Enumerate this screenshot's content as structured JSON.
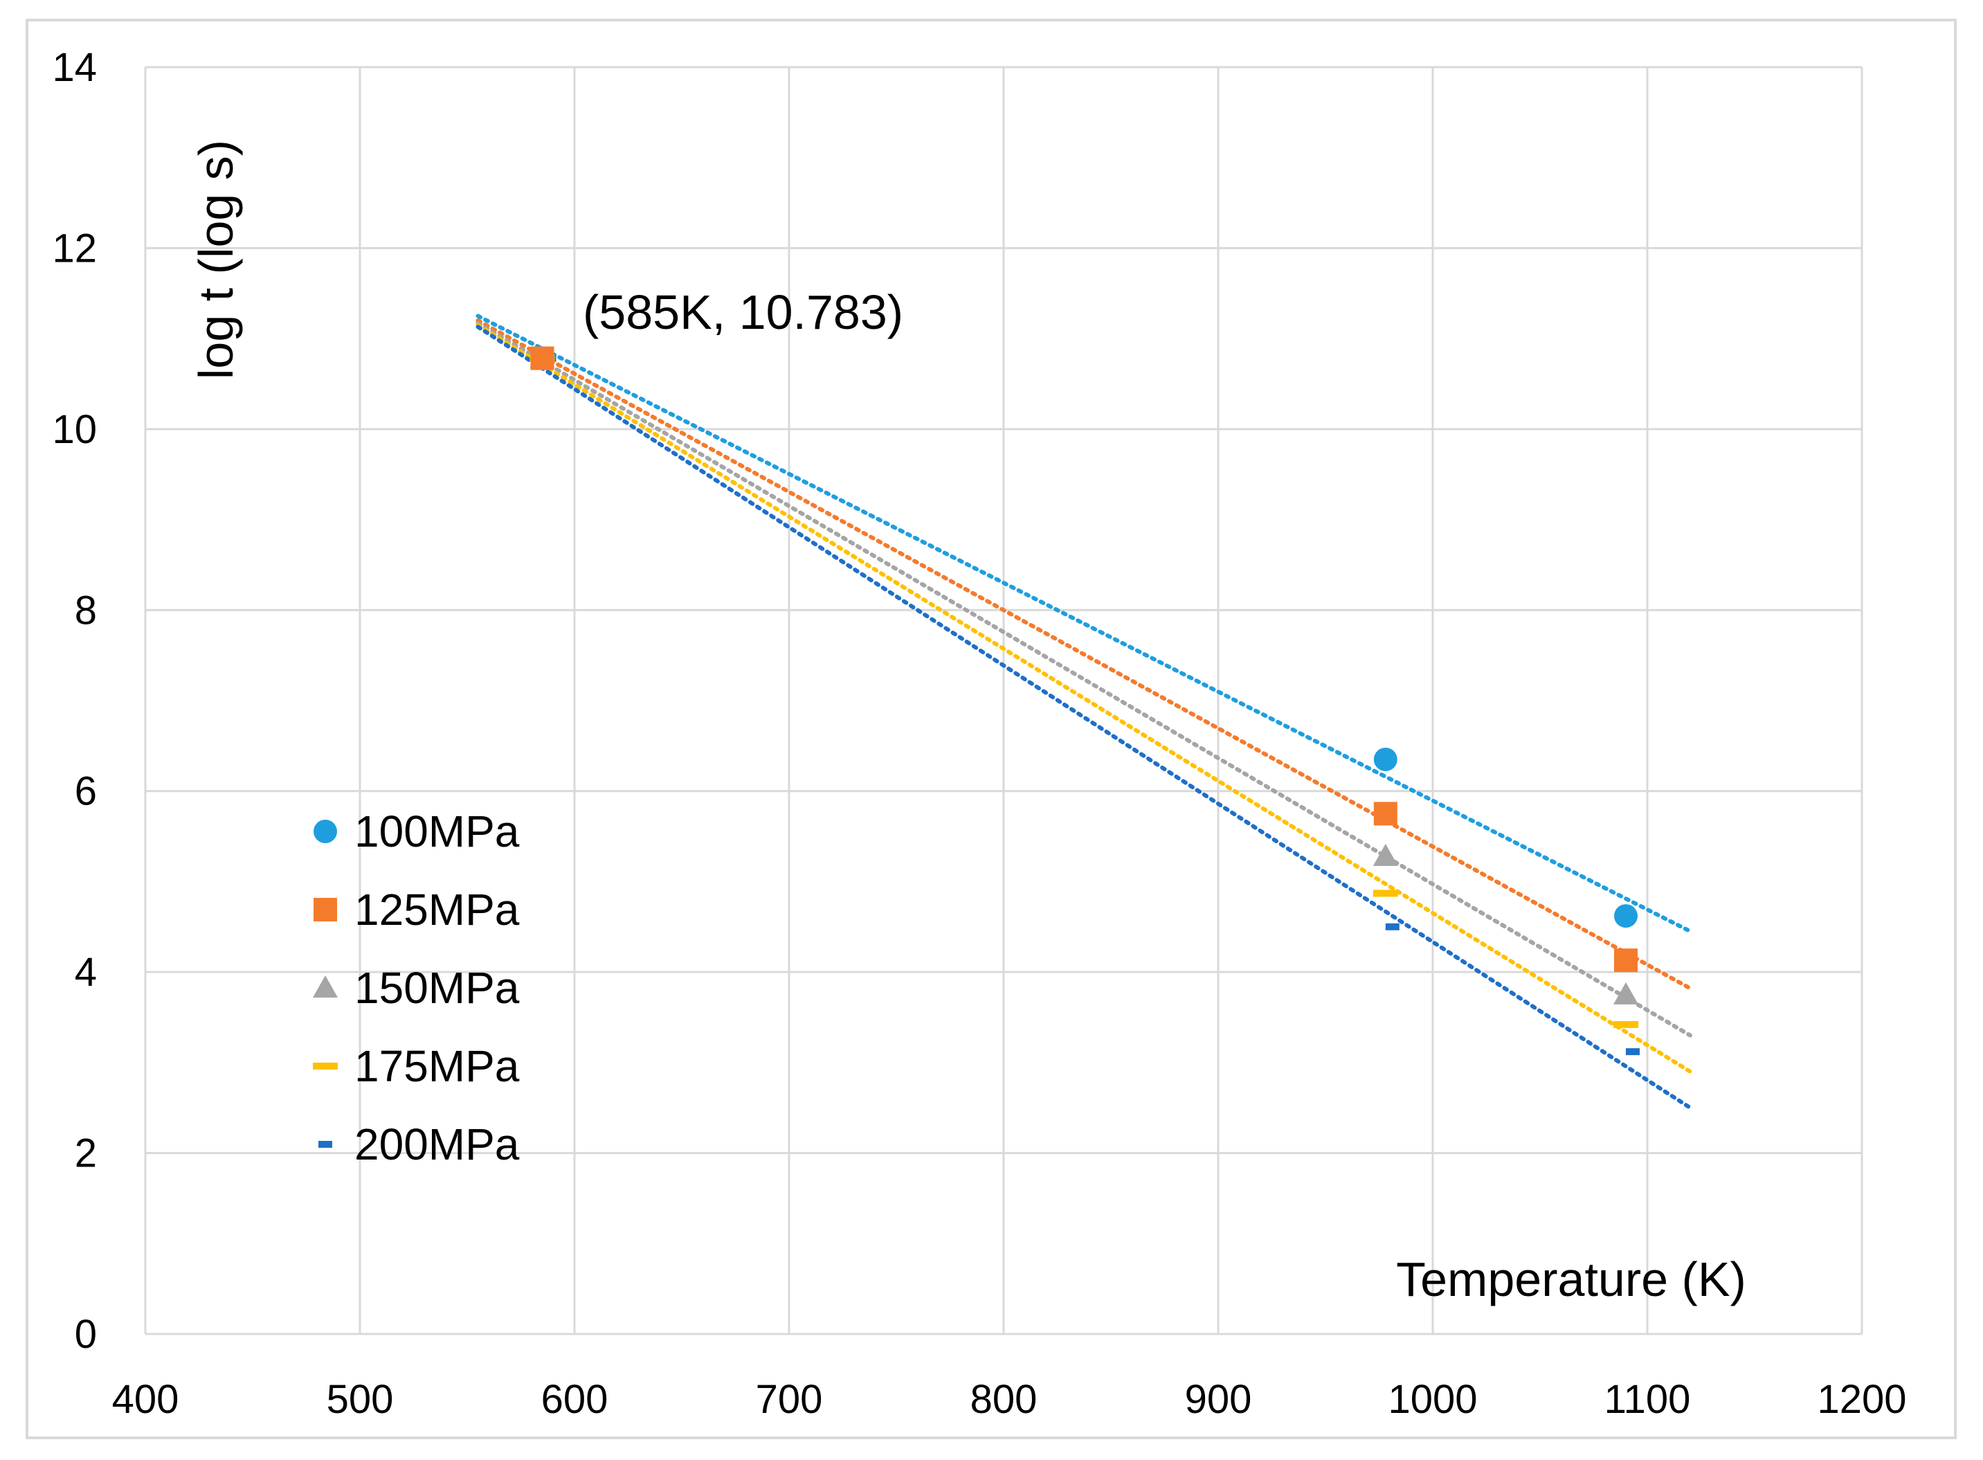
{
  "chart_data": {
    "type": "scatter",
    "title": "",
    "xlabel": "Temperature (K)",
    "ylabel": "log t (log s)",
    "xlim": [
      400,
      1200
    ],
    "ylim": [
      0,
      14
    ],
    "xticks": [
      400,
      500,
      600,
      700,
      800,
      900,
      1000,
      1100,
      1200
    ],
    "yticks": [
      0,
      2,
      4,
      6,
      8,
      10,
      12,
      14
    ],
    "grid": true,
    "legend_position": "lower-left",
    "annotation": {
      "text": "(585K, 10.783)",
      "x": 585,
      "y": 10.783
    },
    "series": [
      {
        "name": "100MPa",
        "color": "#1f9ede",
        "marker": "circle",
        "x": [
          585,
          978,
          1090
        ],
        "y": [
          10.783,
          6.35,
          4.62
        ],
        "trendline": {
          "x": [
            555,
            1120
          ],
          "y": [
            11.25,
            4.45
          ]
        }
      },
      {
        "name": "125MPa",
        "color": "#f47b2c",
        "marker": "square",
        "x": [
          585,
          978,
          1090
        ],
        "y": [
          10.783,
          5.75,
          4.13
        ],
        "trendline": {
          "x": [
            555,
            1120
          ],
          "y": [
            11.2,
            3.82
          ]
        }
      },
      {
        "name": "150MPa",
        "color": "#a5a5a5",
        "marker": "triangle",
        "x": [
          585,
          978,
          1090
        ],
        "y": [
          10.783,
          5.28,
          3.75
        ],
        "trendline": {
          "x": [
            555,
            1120
          ],
          "y": [
            11.17,
            3.3
          ]
        }
      },
      {
        "name": "175MPa",
        "color": "#ffc000",
        "marker": "dash",
        "x": [
          585,
          978,
          1090
        ],
        "y": [
          10.783,
          4.87,
          3.42
        ],
        "trendline": {
          "x": [
            555,
            1120
          ],
          "y": [
            11.15,
            2.9
          ]
        }
      },
      {
        "name": "200MPa",
        "color": "#1f6fc8",
        "marker": "small-dash",
        "x": [
          585,
          978,
          1090
        ],
        "y": [
          10.783,
          4.5,
          3.12
        ],
        "trendline": {
          "x": [
            555,
            1120
          ],
          "y": [
            11.13,
            2.5
          ]
        }
      }
    ]
  }
}
